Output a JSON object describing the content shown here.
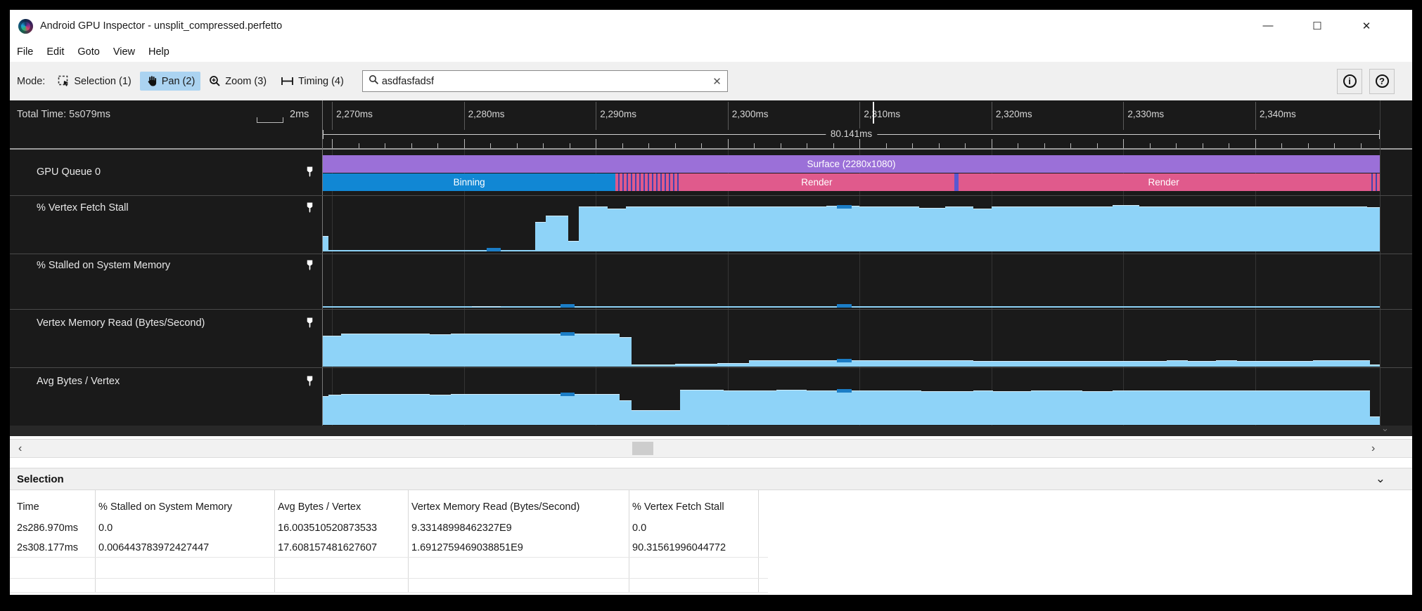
{
  "window": {
    "title": "Android GPU Inspector - unsplit_compressed.perfetto",
    "minimize": "—",
    "maximize": "☐",
    "close": "✕"
  },
  "menubar": {
    "items": [
      "File",
      "Edit",
      "Goto",
      "View",
      "Help"
    ]
  },
  "toolbar": {
    "mode_label": "Mode:",
    "modes": [
      {
        "label": "Selection (1)",
        "icon": "selection-cursor-icon",
        "active": false
      },
      {
        "label": "Pan (2)",
        "icon": "hand-icon",
        "active": true
      },
      {
        "label": "Zoom (3)",
        "icon": "magnifier-plus-icon",
        "active": false
      },
      {
        "label": "Timing (4)",
        "icon": "timing-icon",
        "active": false
      }
    ],
    "search": {
      "value": "asdfasfadsf",
      "clear_label": "✕"
    },
    "info_button": "i",
    "help_button": "?"
  },
  "timeline": {
    "total_time": "Total Time: 5s079ms",
    "scale_label": "2ms",
    "visible_range_label": "80.141ms",
    "cursor_time": 2311.0,
    "ruler_labels": [
      {
        "t": 2270,
        "label": "2,270ms"
      },
      {
        "t": 2280,
        "label": "2,280ms"
      },
      {
        "t": 2290,
        "label": "2,290ms"
      },
      {
        "t": 2300,
        "label": "2,300ms"
      },
      {
        "t": 2310,
        "label": "2,310ms"
      },
      {
        "t": 2320,
        "label": "2,320ms"
      },
      {
        "t": 2330,
        "label": "2,330ms"
      },
      {
        "t": 2340,
        "label": "2,340ms"
      }
    ],
    "tracks": [
      {
        "name": "GPU Queue 0"
      },
      {
        "name": "% Vertex Fetch Stall"
      },
      {
        "name": "% Stalled on System Memory"
      },
      {
        "name": "Vertex Memory Read (Bytes/Second)"
      },
      {
        "name": "Avg Bytes / Vertex"
      }
    ]
  },
  "chart_data": {
    "type": "area",
    "x_axis": {
      "unit": "ms",
      "start": 2269.3,
      "end": 2349.44,
      "span_label": "80.141ms",
      "grid": true
    },
    "gpu_queue": {
      "rows": [
        [
          {
            "t0": 2269.3,
            "t1": 2349.44,
            "label": "Surface (2280x1080)",
            "kind": "surface"
          }
        ],
        [
          {
            "t0": 2269.3,
            "t1": 2291.5,
            "label": "Binning",
            "kind": "binning"
          },
          {
            "t0": 2291.5,
            "t1": 2296.3,
            "label": "",
            "kind": "striped"
          },
          {
            "t0": 2296.3,
            "t1": 2317.2,
            "label": "Render",
            "kind": "render"
          },
          {
            "t0": 2317.2,
            "t1": 2317.5,
            "label": "",
            "kind": "divider"
          },
          {
            "t0": 2317.5,
            "t1": 2348.6,
            "label": "Render",
            "kind": "render"
          },
          {
            "t0": 2348.6,
            "t1": 2349.44,
            "label": "",
            "kind": "striped"
          }
        ]
      ]
    },
    "counters": [
      {
        "name": "% Vertex Fetch Stall",
        "unit": "%",
        "ymax": 100,
        "steps": [
          [
            2269.3,
            30
          ],
          [
            2269.7,
            0
          ],
          [
            2285.4,
            58
          ],
          [
            2286.2,
            70
          ],
          [
            2287.9,
            20
          ],
          [
            2288.7,
            87
          ],
          [
            2290.9,
            84
          ],
          [
            2292.3,
            87
          ],
          [
            2302.0,
            88
          ],
          [
            2307.5,
            89
          ],
          [
            2310.0,
            87
          ],
          [
            2313.0,
            88
          ],
          [
            2314.5,
            85
          ],
          [
            2316.5,
            88
          ],
          [
            2318.6,
            84
          ],
          [
            2320.0,
            88
          ],
          [
            2329.2,
            90
          ],
          [
            2331.2,
            87
          ],
          [
            2334.0,
            88
          ],
          [
            2340.0,
            87
          ],
          [
            2344.0,
            88
          ],
          [
            2348.5,
            86
          ]
        ],
        "markers": [
          [
            2281.7,
            2282.8,
            0
          ],
          [
            2308.3,
            2309.4,
            88
          ]
        ]
      },
      {
        "name": "% Stalled on System Memory",
        "unit": "%",
        "ymax": 100,
        "steps": [
          [
            2269.3,
            0
          ],
          [
            2280.6,
            3
          ],
          [
            2282.8,
            0
          ]
        ],
        "markers": [
          [
            2287.3,
            2288.4,
            0
          ],
          [
            2308.3,
            2309.4,
            1
          ]
        ]
      },
      {
        "name": "Vertex Memory Read (Bytes/Second)",
        "unit": "E9 Bytes/s",
        "ymax": 15,
        "steps": [
          [
            2269.3,
            8.7
          ],
          [
            2270.7,
            9.4
          ],
          [
            2277.4,
            9.15
          ],
          [
            2279.0,
            9.4
          ],
          [
            2283.0,
            9.3
          ],
          [
            2284.5,
            9.4
          ],
          [
            2291.8,
            8.3
          ],
          [
            2292.7,
            0.55
          ],
          [
            2296.0,
            0.8
          ],
          [
            2299.2,
            0.95
          ],
          [
            2301.6,
            1.7
          ],
          [
            2310.7,
            1.9
          ],
          [
            2318.6,
            1.6
          ],
          [
            2333.3,
            1.9
          ],
          [
            2334.9,
            1.6
          ],
          [
            2337.0,
            1.9
          ],
          [
            2338.6,
            1.65
          ],
          [
            2344.4,
            1.75
          ],
          [
            2348.7,
            0.6
          ]
        ],
        "markers": [
          [
            2287.3,
            2288.4,
            9.4
          ],
          [
            2308.3,
            2309.4,
            1.7
          ]
        ]
      },
      {
        "name": "Avg Bytes / Vertex",
        "unit": "bytes/vertex",
        "ymax": 27,
        "steps": [
          [
            2269.3,
            14.8
          ],
          [
            2269.7,
            15.6
          ],
          [
            2270.7,
            16.0
          ],
          [
            2277.4,
            15.6
          ],
          [
            2279.0,
            16.0
          ],
          [
            2283.0,
            15.8
          ],
          [
            2284.5,
            16.0
          ],
          [
            2291.8,
            12.5
          ],
          [
            2292.7,
            7.5
          ],
          [
            2296.4,
            17.9
          ],
          [
            2299.7,
            17.6
          ],
          [
            2303.7,
            17.9
          ],
          [
            2306.0,
            17.6
          ],
          [
            2314.7,
            17.3
          ],
          [
            2318.6,
            17.7
          ],
          [
            2320.1,
            17.3
          ],
          [
            2323.0,
            17.7
          ],
          [
            2326.9,
            17.4
          ],
          [
            2329.2,
            17.8
          ],
          [
            2333.3,
            17.5
          ],
          [
            2337.0,
            17.8
          ],
          [
            2340.0,
            17.5
          ],
          [
            2344.4,
            17.7
          ],
          [
            2348.7,
            4.2
          ]
        ],
        "markers": [
          [
            2287.3,
            2288.4,
            16.0
          ],
          [
            2308.3,
            2309.4,
            17.6
          ]
        ]
      }
    ]
  },
  "scrollbar": {
    "left_arrow": "‹",
    "right_arrow": "›"
  },
  "selection_panel": {
    "title": "Selection",
    "collapse_icon": "⌄",
    "table": {
      "headers": [
        "Time",
        "% Stalled on System Memory",
        "Avg Bytes / Vertex",
        "Vertex Memory Read (Bytes/Second)",
        "% Vertex Fetch Stall"
      ],
      "rows": [
        [
          "2s286.970ms",
          "0.0",
          "16.003510520873533",
          "9.33148998462327E9",
          "0.0"
        ],
        [
          "2s308.177ms",
          "0.006443783972427447",
          "17.608157481627607",
          "1.6912759469038851E9",
          "90.31561996044772"
        ]
      ]
    }
  },
  "colors": {
    "timeline_bg": "#1a1a1a",
    "surface_purple": "#9b70d8",
    "binning_blue": "#1187d4",
    "render_pink": "#e05a8c",
    "stripe_dark": "#4443ae",
    "area_fill": "#8ed3f8",
    "marker_blue": "#1b7dc6",
    "pan_active_bg": "#abd3f1",
    "toolbar_bg": "#f0f0f0"
  }
}
